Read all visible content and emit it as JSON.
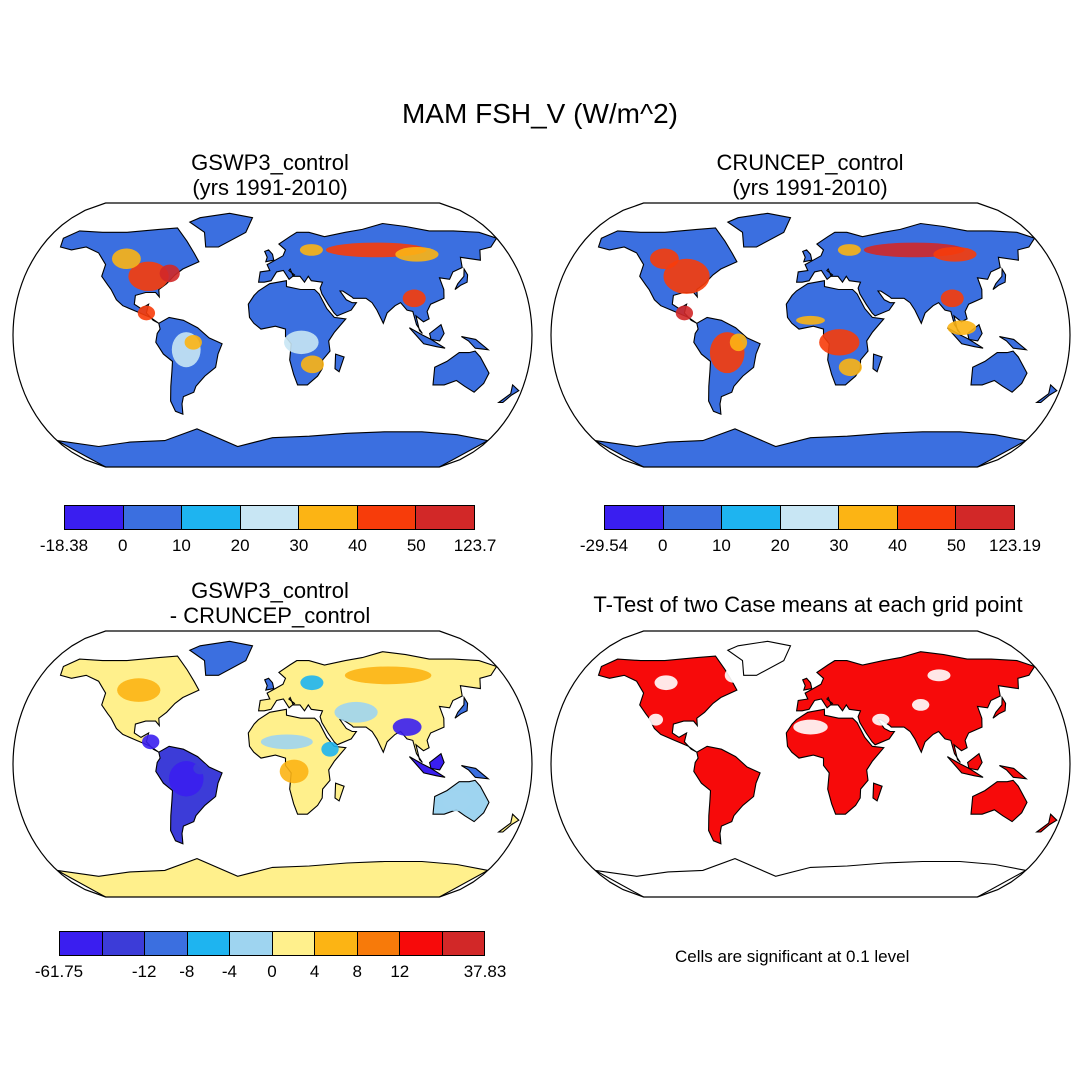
{
  "title": "MAM FSH_V (W/m^2)",
  "panels": [
    {
      "id": "gswp3",
      "title_line1": "GSWP3_control",
      "title_line2": "(yrs 1991-2010)",
      "colorbar": {
        "colors": [
          "#3a1ef0",
          "#3b6fe0",
          "#1eb4f0",
          "#c8e6f4",
          "#fcb414",
          "#f73c0a",
          "#d22828"
        ],
        "labels": [
          "-18.38",
          "0",
          "10",
          "20",
          "30",
          "40",
          "50",
          "123.7"
        ]
      }
    },
    {
      "id": "cruncep",
      "title_line1": "CRUNCEP_control",
      "title_line2": "(yrs 1991-2010)",
      "colorbar": {
        "colors": [
          "#3a1ef0",
          "#3b6fe0",
          "#1eb4f0",
          "#c8e6f4",
          "#fcb414",
          "#f73c0a",
          "#d22828"
        ],
        "labels": [
          "-29.54",
          "0",
          "10",
          "20",
          "30",
          "40",
          "50",
          "123.19"
        ]
      }
    },
    {
      "id": "diff",
      "title_line1": "GSWP3_control",
      "title_line2": "- CRUNCEP_control",
      "colorbar": {
        "colors": [
          "#3a1ef0",
          "#3c3cd8",
          "#3b6fe0",
          "#1eb4f0",
          "#9ed4f0",
          "#fff08c",
          "#fcb414",
          "#f77a0a",
          "#f70a0a",
          "#d22828"
        ],
        "labels": [
          "-61.75",
          "",
          "-12",
          "-8",
          "-4",
          "0",
          "4",
          "8",
          "12",
          "",
          "37.83"
        ]
      }
    },
    {
      "id": "ttest",
      "title_line1": "T-Test of two Case means at each grid point",
      "title_line2": "",
      "note": "Cells are significant at 0.1 level"
    }
  ]
}
